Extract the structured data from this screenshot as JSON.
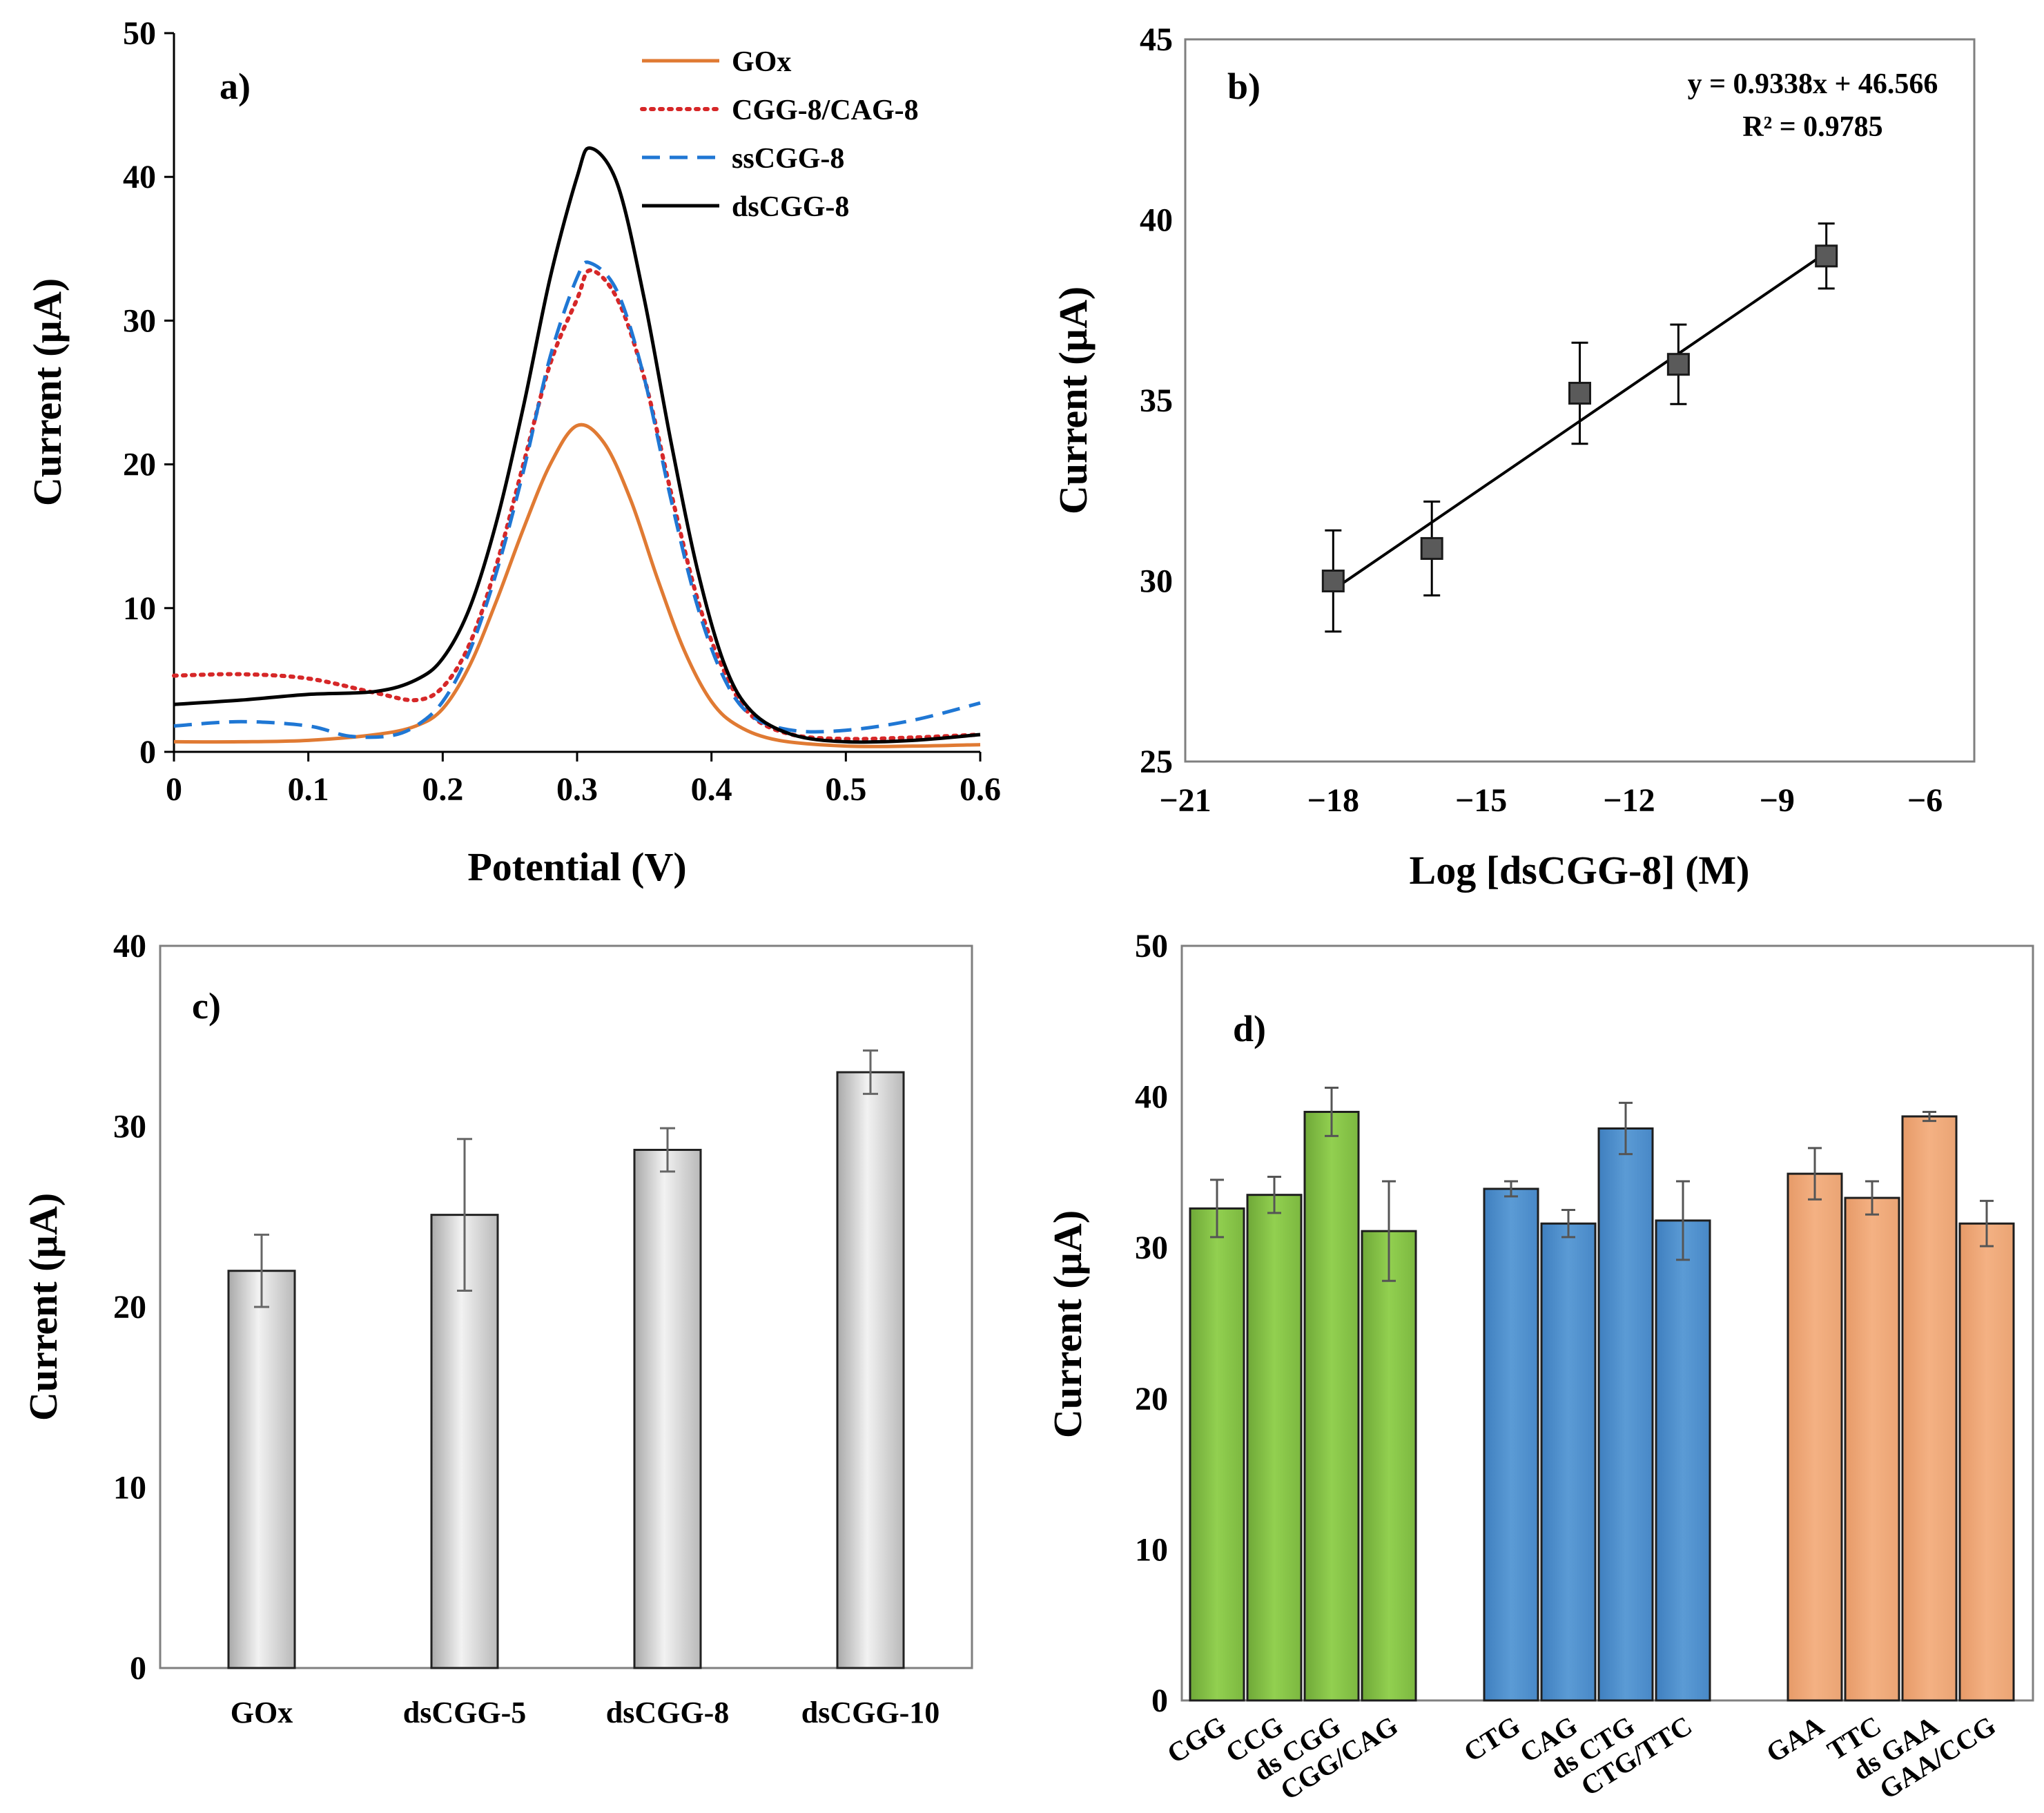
{
  "chart_data": [
    {
      "id": "a",
      "type": "line",
      "panel_label": "a)",
      "xlabel": "Potential (V)",
      "ylabel": "Current (µA)",
      "xlim": [
        0,
        0.6
      ],
      "ylim": [
        0,
        50
      ],
      "xticks": [
        "0",
        "0.1",
        "0.2",
        "0.3",
        "0.4",
        "0.5",
        "0.6"
      ],
      "yticks": [
        "0",
        "10",
        "20",
        "30",
        "40",
        "50"
      ],
      "legend_position": "top-right",
      "series": [
        {
          "name": "GOx",
          "color": "#E07A33",
          "dash": "solid",
          "x": [
            0,
            0.05,
            0.1,
            0.15,
            0.18,
            0.2,
            0.22,
            0.24,
            0.26,
            0.28,
            0.3,
            0.32,
            0.34,
            0.36,
            0.38,
            0.4,
            0.42,
            0.45,
            0.5,
            0.55,
            0.6
          ],
          "y": [
            0.7,
            0.7,
            0.8,
            1.2,
            1.8,
            3,
            6,
            10.5,
            15.5,
            20,
            22.7,
            21.5,
            17.5,
            12,
            7,
            3.5,
            1.8,
            0.8,
            0.4,
            0.4,
            0.5
          ]
        },
        {
          "name": "CGG-8/CAG-8",
          "color": "#D62728",
          "dash": "dot",
          "x": [
            0,
            0.05,
            0.1,
            0.15,
            0.18,
            0.2,
            0.22,
            0.24,
            0.26,
            0.28,
            0.3,
            0.31,
            0.33,
            0.35,
            0.37,
            0.39,
            0.41,
            0.43,
            0.46,
            0.5,
            0.55,
            0.6
          ],
          "y": [
            5.3,
            5.4,
            5.1,
            4.1,
            3.6,
            4.5,
            7.5,
            13,
            20,
            27,
            31.5,
            33.5,
            31.5,
            26,
            18,
            10.5,
            5.5,
            2.5,
            1.2,
            0.9,
            1,
            1.2
          ]
        },
        {
          "name": "ssCGG-8",
          "color": "#1F77D4",
          "dash": "dash",
          "x": [
            0,
            0.05,
            0.1,
            0.13,
            0.16,
            0.18,
            0.2,
            0.22,
            0.24,
            0.26,
            0.28,
            0.3,
            0.31,
            0.33,
            0.35,
            0.37,
            0.39,
            0.41,
            0.43,
            0.46,
            0.5,
            0.55,
            0.6
          ],
          "y": [
            1.8,
            2.1,
            1.8,
            1.1,
            1.1,
            1.8,
            3.5,
            7,
            12.5,
            19.5,
            27.5,
            33,
            34,
            32,
            26,
            17.5,
            10,
            5,
            2.5,
            1.5,
            1.5,
            2.2,
            3.4
          ]
        },
        {
          "name": "dsCGG-8",
          "color": "#000000",
          "dash": "solid",
          "x": [
            0,
            0.05,
            0.1,
            0.15,
            0.18,
            0.2,
            0.22,
            0.24,
            0.26,
            0.28,
            0.3,
            0.31,
            0.33,
            0.35,
            0.37,
            0.39,
            0.41,
            0.43,
            0.46,
            0.5,
            0.55,
            0.6
          ],
          "y": [
            3.3,
            3.6,
            4,
            4.2,
            5,
            6.5,
            10,
            16,
            24,
            33,
            40,
            42,
            39.5,
            31.5,
            21.5,
            12.5,
            6,
            2.8,
            1.2,
            0.7,
            0.8,
            1.2
          ]
        }
      ]
    },
    {
      "id": "b",
      "type": "scatter",
      "panel_label": "b)",
      "xlabel": "Log [dsCGG-8] (M)",
      "ylabel": "Current (µA)",
      "xlim": [
        -21,
        -5
      ],
      "ylim": [
        25,
        45
      ],
      "xticks": [
        "-21",
        "-18",
        "-15",
        "-12",
        "-9",
        "-6"
      ],
      "yticks": [
        "25",
        "30",
        "35",
        "40",
        "45"
      ],
      "points": [
        {
          "x": -18,
          "y": 30.0,
          "err": 1.4
        },
        {
          "x": -16,
          "y": 30.9,
          "err": 1.3
        },
        {
          "x": -13,
          "y": 35.2,
          "err": 1.4
        },
        {
          "x": -11,
          "y": 36.0,
          "err": 1.1
        },
        {
          "x": -8,
          "y": 39.0,
          "err": 0.9
        }
      ],
      "fit": {
        "slope": 0.9338,
        "intercept": 46.566,
        "x_range": [
          -18,
          -8
        ]
      },
      "equation": "y = 0.9338x + 46.566",
      "r_squared": "R² = 0.9785"
    },
    {
      "id": "c",
      "type": "bar",
      "panel_label": "c)",
      "xlabel": "",
      "ylabel": "Current (µA)",
      "ylim": [
        0,
        40
      ],
      "yticks": [
        "0",
        "10",
        "20",
        "30",
        "40"
      ],
      "categories": [
        "GOx",
        "dsCGG-5",
        "dsCGG-8",
        "dsCGG-10"
      ],
      "values": [
        22.0,
        25.1,
        28.7,
        33.0
      ],
      "errors": [
        2.0,
        4.2,
        1.2,
        1.2
      ],
      "bar_color": "#D9D9D9"
    },
    {
      "id": "d",
      "type": "bar",
      "panel_label": "d)",
      "xlabel": "",
      "ylabel": "Current (µA)",
      "ylim": [
        0,
        50
      ],
      "yticks": [
        "0",
        "10",
        "20",
        "30",
        "40",
        "50"
      ],
      "groups": [
        {
          "color": "#92D050",
          "categories": [
            "CGG",
            "CCG",
            "ds CGG",
            "CGG/CAG"
          ],
          "values": [
            32.6,
            33.5,
            39.0,
            31.1
          ],
          "errors": [
            1.9,
            1.2,
            1.6,
            3.3
          ]
        },
        {
          "color": "#5B9BD5",
          "categories": [
            "CTG",
            "CAG",
            "ds CTG",
            "CTG/TTC"
          ],
          "values": [
            33.9,
            31.6,
            37.9,
            31.8
          ],
          "errors": [
            0.5,
            0.9,
            1.7,
            2.6
          ]
        },
        {
          "color": "#F4B183",
          "categories": [
            "GAA",
            "TTC",
            "ds GAA",
            "GAA/CCG"
          ],
          "values": [
            34.9,
            33.3,
            38.7,
            31.6
          ],
          "errors": [
            1.7,
            1.1,
            0.3,
            1.5
          ]
        }
      ]
    }
  ]
}
